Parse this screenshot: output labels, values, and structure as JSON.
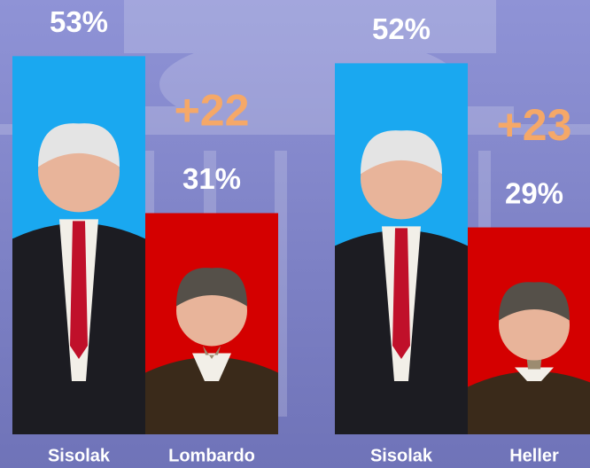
{
  "chart_data": [
    {
      "type": "bar",
      "categories": [
        "Sisolak",
        "Lombardo"
      ],
      "values": [
        53,
        31
      ],
      "value_labels": [
        "53%",
        "31%"
      ],
      "colors": [
        "#1aa8f0",
        "#d40000"
      ],
      "annotation": "+22"
    },
    {
      "type": "bar",
      "categories": [
        "Sisolak",
        "Heller"
      ],
      "values": [
        52,
        29
      ],
      "value_labels": [
        "52%",
        "29%"
      ],
      "colors": [
        "#1aa8f0",
        "#d40000"
      ],
      "annotation": "+23"
    }
  ]
}
